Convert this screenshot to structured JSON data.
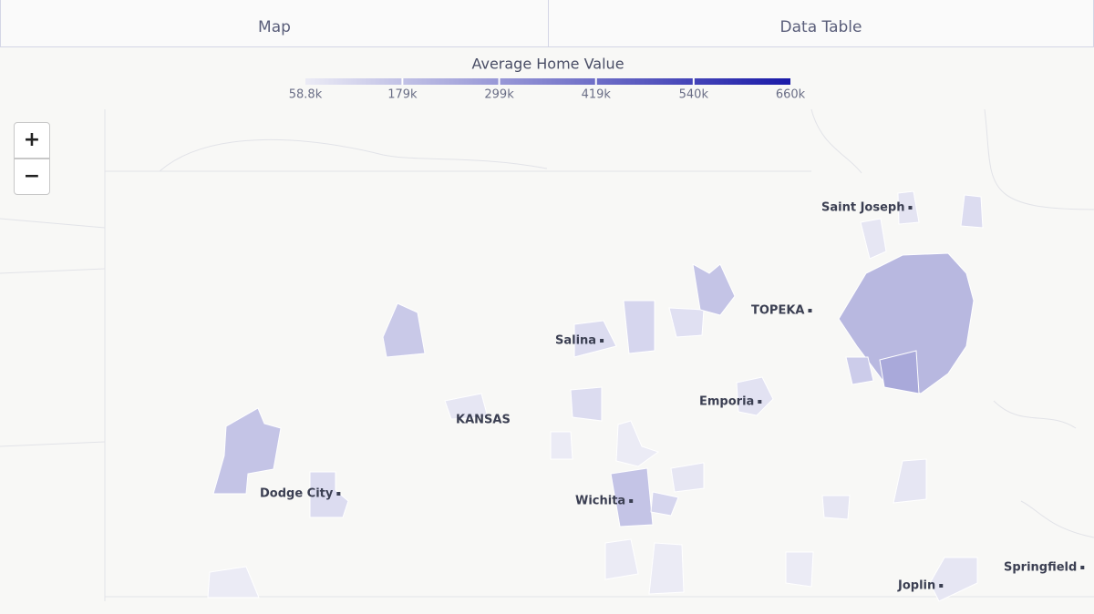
{
  "tabs": [
    "Map",
    "Data Table"
  ],
  "legend": {
    "title": "Average Home Value",
    "range": [
      58800,
      660000
    ],
    "colors": [
      "#ebebf5",
      "#1a1aa8"
    ],
    "ticks": [
      {
        "value": 58800,
        "label": "58.8k"
      },
      {
        "value": 179000,
        "label": "179k"
      },
      {
        "value": 299000,
        "label": "299k"
      },
      {
        "value": 419000,
        "label": "419k"
      },
      {
        "value": 540000,
        "label": "540k"
      },
      {
        "value": 660000,
        "label": "660k"
      }
    ]
  },
  "zoom": [
    "+",
    "−"
  ],
  "places": [
    "Saint Joseph",
    "TOPEKA",
    "Salina",
    "Emporia",
    "KANSAS",
    "Dodge City",
    "Wichita",
    "Joplin",
    "Springfield"
  ]
}
